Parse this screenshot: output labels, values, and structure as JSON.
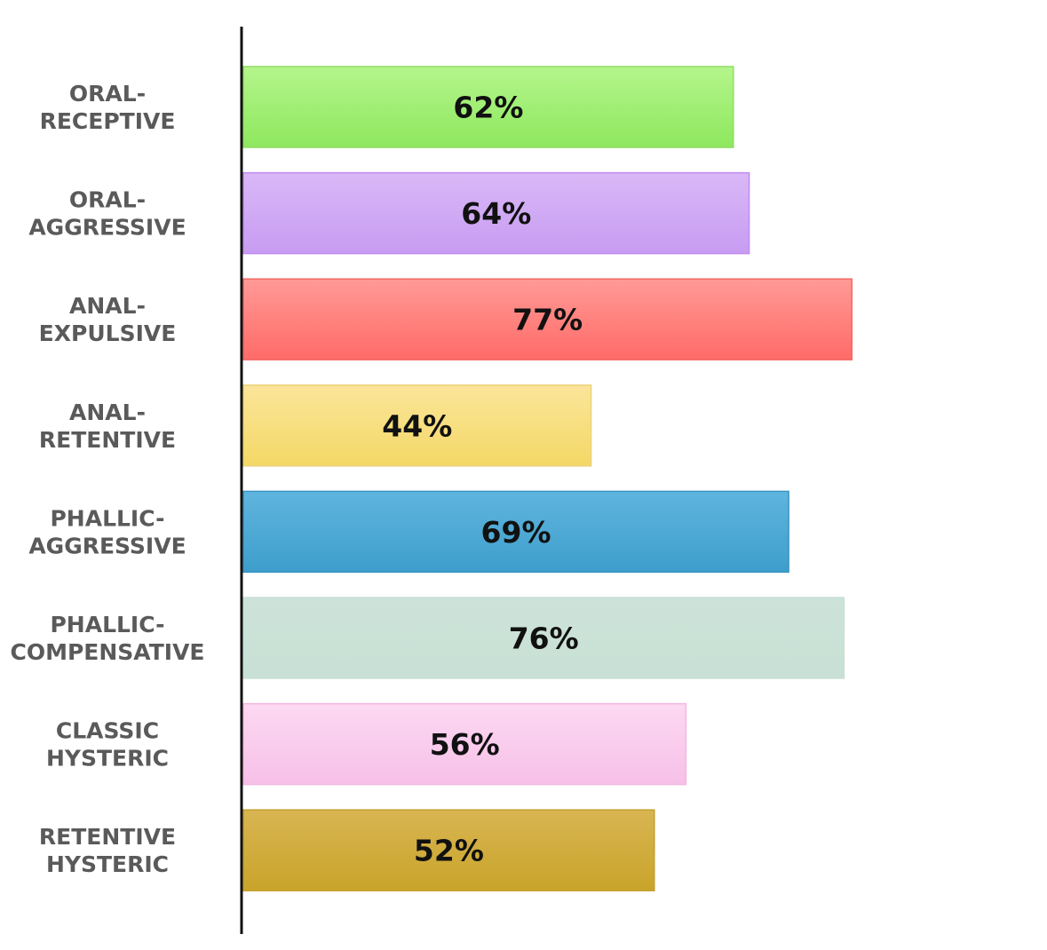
{
  "chart_data": {
    "type": "bar",
    "orientation": "horizontal",
    "categories": [
      [
        "ORAL-",
        "RECEPTIVE"
      ],
      [
        "ORAL-",
        "AGGRESSIVE"
      ],
      [
        "ANAL-",
        "EXPULSIVE"
      ],
      [
        "ANAL-",
        "RETENTIVE"
      ],
      [
        "PHALLIC-",
        "AGGRESSIVE"
      ],
      [
        "PHALLIC-",
        "COMPENSATIVE"
      ],
      [
        "CLASSIC",
        "HYSTERIC"
      ],
      [
        "RETENTIVE",
        "HYSTERIC"
      ]
    ],
    "values": [
      62,
      64,
      77,
      44,
      69,
      76,
      56,
      52
    ],
    "value_labels": [
      "62%",
      "64%",
      "77%",
      "44%",
      "69%",
      "76%",
      "56%",
      "52%"
    ],
    "colors": [
      {
        "top": "#b4f58c",
        "bottom": "#8ee85e",
        "stroke": "#8fdc63"
      },
      {
        "top": "#dab8f7",
        "bottom": "#c79cf2",
        "stroke": "#c08cef"
      },
      {
        "top": "#ff9a96",
        "bottom": "#ff6b68",
        "stroke": "#f36a67"
      },
      {
        "top": "#fbe59a",
        "bottom": "#f4d866",
        "stroke": "#ecd27a"
      },
      {
        "top": "#5fb5de",
        "bottom": "#3e9ecb",
        "stroke": "#3a95c2"
      },
      {
        "top": "#cde3d9",
        "bottom": "#c8e0d5",
        "stroke": "#c8e0d5"
      },
      {
        "top": "#fcd9f2",
        "bottom": "#f7c0e8",
        "stroke": "#f3b7e2"
      },
      {
        "top": "#d8b552",
        "bottom": "#c9a42a",
        "stroke": "#c59f2d"
      }
    ],
    "xlim": [
      0,
      100
    ],
    "grid": false,
    "legend": "none",
    "title": "",
    "xlabel": "",
    "ylabel": ""
  }
}
